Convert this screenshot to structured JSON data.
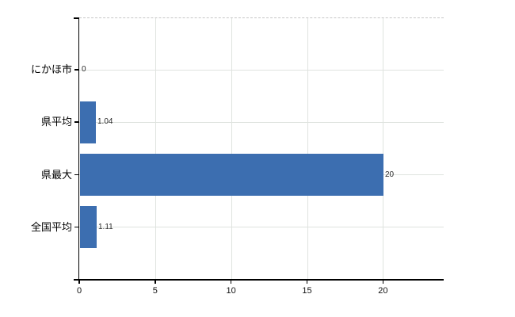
{
  "chart_data": {
    "type": "bar",
    "orientation": "horizontal",
    "title": "",
    "xlabel": "",
    "ylabel": "",
    "categories": [
      "にかほ市",
      "県平均",
      "県最大",
      "全国平均"
    ],
    "values": [
      0,
      1.04,
      20,
      1.11
    ],
    "value_labels": [
      "0",
      "1.04",
      "20",
      "1.11"
    ],
    "x_ticks": [
      0,
      5,
      10,
      15,
      20
    ],
    "x_tick_labels": [
      "0",
      "5",
      "10",
      "15",
      "20"
    ],
    "xlim": [
      0,
      24
    ],
    "grid": true,
    "legend": "none",
    "bar_color": "#3c6eb0",
    "grid_color": "#dfe3df",
    "axis_color": "#000000",
    "background_color": "#ffffff"
  }
}
